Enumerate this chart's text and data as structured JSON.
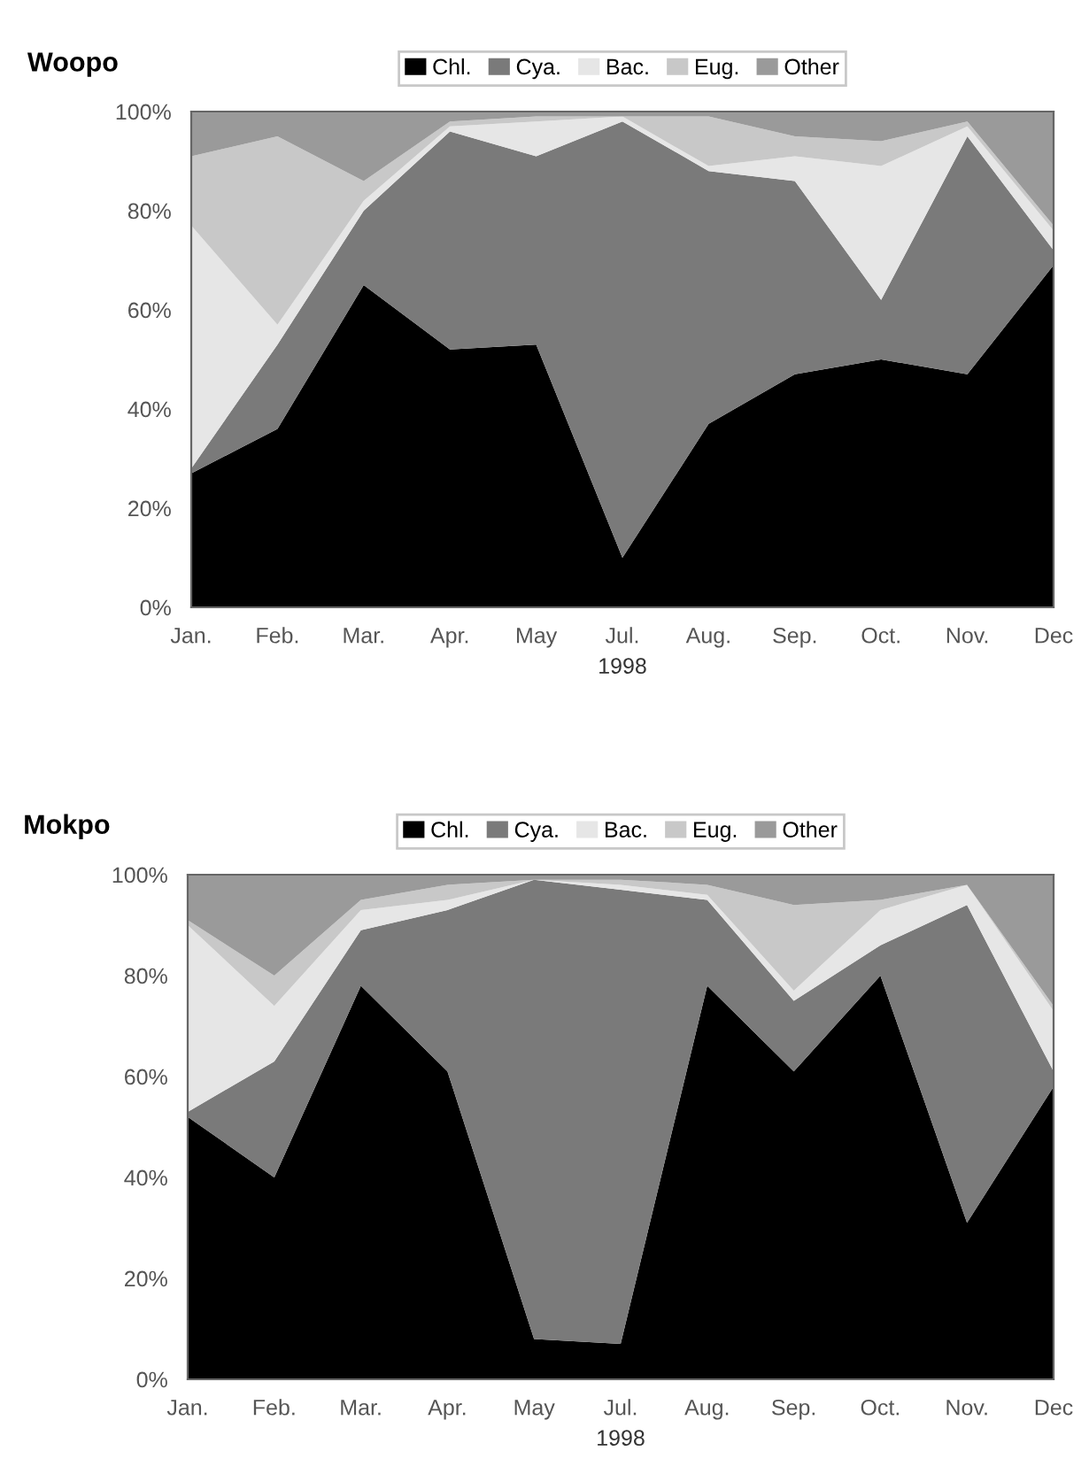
{
  "chart_data": [
    {
      "type": "area",
      "title": "Woopo",
      "xlabel": "1998",
      "stacked": true,
      "legend": "top",
      "grid": false,
      "categories": [
        "Jan.",
        "Feb.",
        "Mar.",
        "Apr.",
        "May",
        "Jul.",
        "Aug.",
        "Sep.",
        "Oct.",
        "Nov.",
        "Dec"
      ],
      "ylim": [
        0,
        100
      ],
      "yticks": [
        {
          "value": 0,
          "label": "0%"
        },
        {
          "value": 20,
          "label": "20%"
        },
        {
          "value": 40,
          "label": "40%"
        },
        {
          "value": 60,
          "label": "60%"
        },
        {
          "value": 80,
          "label": "80%"
        },
        {
          "value": 100,
          "label": "100%"
        }
      ],
      "series": [
        {
          "name": "Chl.",
          "color": "#000000",
          "values": [
            27,
            36,
            65,
            52,
            53,
            10,
            37,
            47,
            50,
            47,
            69
          ]
        },
        {
          "name": "Cya.",
          "color": "#7a7a7a",
          "values": [
            1,
            17,
            15,
            44,
            38,
            88,
            51,
            39,
            12,
            48,
            3
          ]
        },
        {
          "name": "Bac.",
          "color": "#e6e6e6",
          "values": [
            49,
            4,
            2,
            1,
            7,
            1,
            1,
            5,
            27,
            2,
            4
          ]
        },
        {
          "name": "Eug.",
          "color": "#c8c8c8",
          "values": [
            14,
            38,
            4,
            1,
            1,
            0,
            10,
            4,
            5,
            1,
            1
          ]
        },
        {
          "name": "Other",
          "color": "#9a9a9a",
          "values": [
            9,
            5,
            14,
            2,
            1,
            1,
            1,
            5,
            6,
            2,
            23
          ]
        }
      ]
    },
    {
      "type": "area",
      "title": "Mokpo",
      "xlabel": "1998",
      "stacked": true,
      "legend": "top",
      "grid": false,
      "categories": [
        "Jan.",
        "Feb.",
        "Mar.",
        "Apr.",
        "May",
        "Jul.",
        "Aug.",
        "Sep.",
        "Oct.",
        "Nov.",
        "Dec"
      ],
      "ylim": [
        0,
        100
      ],
      "yticks": [
        {
          "value": 0,
          "label": "0%"
        },
        {
          "value": 20,
          "label": "20%"
        },
        {
          "value": 40,
          "label": "40%"
        },
        {
          "value": 60,
          "label": "60%"
        },
        {
          "value": 80,
          "label": "80%"
        },
        {
          "value": 100,
          "label": "100%"
        }
      ],
      "series": [
        {
          "name": "Chl.",
          "color": "#000000",
          "values": [
            52,
            40,
            78,
            61,
            8,
            7,
            78,
            61,
            80,
            31,
            58
          ]
        },
        {
          "name": "Cya.",
          "color": "#7a7a7a",
          "values": [
            1,
            23,
            11,
            32,
            91,
            90,
            17,
            14,
            6,
            63,
            3
          ]
        },
        {
          "name": "Bac.",
          "color": "#e6e6e6",
          "values": [
            37,
            11,
            4,
            2,
            0,
            1,
            1,
            2,
            7,
            4,
            12
          ]
        },
        {
          "name": "Eug.",
          "color": "#c8c8c8",
          "values": [
            1,
            6,
            2,
            3,
            0,
            1,
            2,
            17,
            2,
            0,
            1
          ]
        },
        {
          "name": "Other",
          "color": "#9a9a9a",
          "values": [
            9,
            20,
            5,
            2,
            1,
            1,
            2,
            6,
            5,
            2,
            26
          ]
        }
      ]
    }
  ]
}
